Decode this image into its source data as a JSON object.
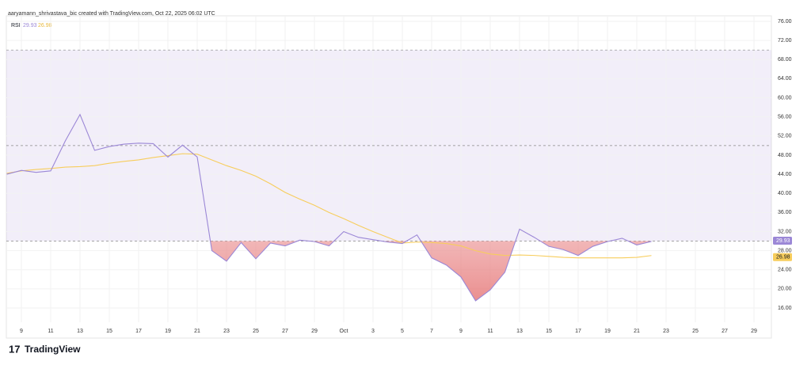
{
  "header": "aaryamann_shrivastava_bic created with TradingView.com, Oct 22, 2025 06:02 UTC",
  "footer": "TradingView",
  "chart_data": {
    "type": "line",
    "categories": [
      null,
      "9",
      null,
      "11",
      null,
      "13",
      null,
      "15",
      null,
      "17",
      null,
      "19",
      null,
      "21",
      null,
      "23",
      null,
      "25",
      null,
      "27",
      null,
      "29",
      null,
      "Oct",
      null,
      "3",
      null,
      "5",
      null,
      "7",
      null,
      "9",
      null,
      "11",
      null,
      "13",
      null,
      "15",
      null,
      "17",
      null,
      "19",
      null,
      "21",
      null,
      "23",
      null,
      "25",
      null,
      "27",
      null,
      "29",
      null
    ],
    "series": [
      {
        "name": "RSI",
        "color": "#9b87d6",
        "values": [
          44.0,
          44.8,
          44.4,
          44.7,
          51.0,
          56.5,
          49.0,
          49.8,
          50.3,
          50.5,
          50.4,
          47.6,
          50.1,
          47.6,
          28.0,
          25.8,
          29.7,
          26.3,
          29.6,
          29.0,
          30.2,
          29.9,
          29.0,
          32.0,
          30.8,
          30.3,
          29.8,
          29.5,
          31.3,
          26.5,
          25.0,
          22.5,
          17.5,
          19.8,
          23.5,
          32.5,
          30.8,
          28.9,
          28.2,
          27.0,
          28.9,
          29.9,
          30.6,
          29.2,
          29.93,
          null,
          null,
          null,
          null,
          null,
          null,
          null,
          null
        ]
      },
      {
        "color": "#f7cd5c",
        "values": [
          44.2,
          44.7,
          45.0,
          45.2,
          45.5,
          45.6,
          45.8,
          46.3,
          46.7,
          47.0,
          47.5,
          47.9,
          48.3,
          48.2,
          47.0,
          45.8,
          44.8,
          43.6,
          42.0,
          40.2,
          38.8,
          37.5,
          36.0,
          34.7,
          33.3,
          32.0,
          30.8,
          29.6,
          29.8,
          29.7,
          29.5,
          29.0,
          28.0,
          27.3,
          27.0,
          27.1,
          27.0,
          26.8,
          26.6,
          26.5,
          26.5,
          26.5,
          26.5,
          26.6,
          26.98,
          null,
          null,
          null,
          null,
          null,
          null,
          null,
          null
        ]
      }
    ],
    "bands": {
      "upper": 70,
      "middle": 50,
      "lower": 30,
      "color": "#7e57c2"
    },
    "ylim": [
      16,
      76
    ],
    "yticks": [
      {
        "value": 16,
        "label": "16.00"
      },
      {
        "value": 20,
        "label": "20.00"
      },
      {
        "value": 24,
        "label": "24.00"
      },
      {
        "value": 28,
        "label": "28.00"
      },
      {
        "value": 32,
        "label": "32.00"
      },
      {
        "value": 36,
        "label": "36.00"
      },
      {
        "value": 40,
        "label": "40.00"
      },
      {
        "value": 44,
        "label": "44.00"
      },
      {
        "value": 48,
        "label": "48.00"
      },
      {
        "value": 52,
        "label": "52.00"
      },
      {
        "value": 56,
        "label": "56.00"
      },
      {
        "value": 60,
        "label": "60.00"
      },
      {
        "value": 64,
        "label": "64.00"
      },
      {
        "value": 68,
        "label": "68.00"
      },
      {
        "value": 72,
        "label": "72.00"
      },
      {
        "value": 76,
        "label": "76.00"
      }
    ],
    "grid": true
  }
}
